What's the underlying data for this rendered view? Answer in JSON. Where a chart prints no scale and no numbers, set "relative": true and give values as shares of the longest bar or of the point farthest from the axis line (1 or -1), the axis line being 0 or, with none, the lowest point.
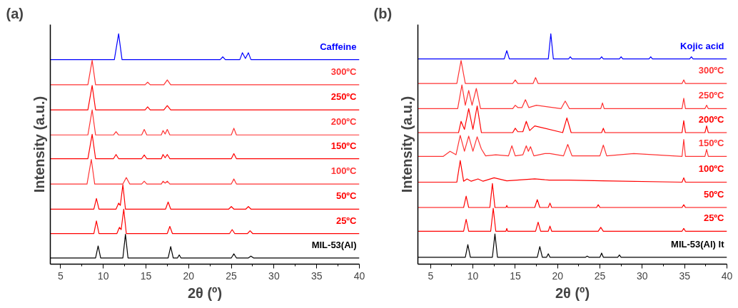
{
  "chart_data": [
    {
      "type": "line",
      "title": "(a)",
      "xlabel": "2θ (º)",
      "ylabel": "Intensity (a.u.)",
      "relative": true,
      "xlim": [
        3.8,
        40
      ],
      "xticks": [
        5,
        10,
        15,
        20,
        25,
        30,
        35,
        40
      ],
      "line_style": "solid",
      "series": [
        {
          "name": "Caffeine",
          "color": "#0000ff",
          "x": [
            3.8,
            11.3,
            11.8,
            12.2,
            23.7,
            24.0,
            24.3,
            26.0,
            26.3,
            26.65,
            27.0,
            27.3,
            40
          ],
          "values": [
            0.888,
            0.888,
            1.0,
            0.888,
            0.888,
            0.9,
            0.888,
            0.888,
            0.918,
            0.893,
            0.918,
            0.888,
            0.888
          ]
        },
        {
          "name": "300ºC",
          "color": "#ff3333",
          "x": [
            3.8,
            8.2,
            8.7,
            9.1,
            14.9,
            15.2,
            15.5,
            17.1,
            17.5,
            17.9,
            40
          ],
          "values": [
            0.779,
            0.779,
            0.885,
            0.779,
            0.779,
            0.79,
            0.779,
            0.779,
            0.8,
            0.779,
            0.779
          ]
        },
        {
          "name": "250ºC",
          "color": "#ff0000",
          "x": [
            3.8,
            8.2,
            8.7,
            9.1,
            14.9,
            15.2,
            15.5,
            17.1,
            17.5,
            17.9,
            40
          ],
          "values": [
            0.67,
            0.67,
            0.776,
            0.67,
            0.67,
            0.683,
            0.67,
            0.67,
            0.688,
            0.67,
            0.67
          ]
        },
        {
          "name": "200ºC",
          "color": "#ff3333",
          "x": [
            3.8,
            8.2,
            8.7,
            9.1,
            11.2,
            11.5,
            11.8,
            14.5,
            14.8,
            15.1,
            16.8,
            17.0,
            17.25,
            17.5,
            17.8,
            25.0,
            25.3,
            25.6,
            40
          ],
          "values": [
            0.561,
            0.561,
            0.67,
            0.561,
            0.561,
            0.575,
            0.561,
            0.561,
            0.585,
            0.561,
            0.561,
            0.58,
            0.565,
            0.585,
            0.561,
            0.561,
            0.59,
            0.561,
            0.561
          ]
        },
        {
          "name": "150ºC",
          "color": "#ff0000",
          "x": [
            3.8,
            8.2,
            8.7,
            9.1,
            11.2,
            11.5,
            11.8,
            14.5,
            14.8,
            15.1,
            16.8,
            17.0,
            17.25,
            17.5,
            17.8,
            25.0,
            25.3,
            25.6,
            40
          ],
          "values": [
            0.458,
            0.458,
            0.564,
            0.458,
            0.458,
            0.476,
            0.458,
            0.458,
            0.474,
            0.458,
            0.458,
            0.476,
            0.462,
            0.476,
            0.458,
            0.458,
            0.48,
            0.458,
            0.458
          ]
        },
        {
          "name": "100ºC",
          "color": "#ff3333",
          "x": [
            3.8,
            8.1,
            8.6,
            9.0,
            12.3,
            12.7,
            13.1,
            14.5,
            14.8,
            15.1,
            16.8,
            17.0,
            17.25,
            17.5,
            17.8,
            25.0,
            25.3,
            25.6,
            40
          ],
          "values": [
            0.348,
            0.348,
            0.455,
            0.348,
            0.348,
            0.376,
            0.348,
            0.348,
            0.36,
            0.348,
            0.348,
            0.36,
            0.352,
            0.36,
            0.348,
            0.348,
            0.37,
            0.348,
            0.348
          ]
        },
        {
          "name": "50ºC",
          "color": "#ff0000",
          "x": [
            3.8,
            8.9,
            9.2,
            9.5,
            11.5,
            11.8,
            12.0,
            12.3,
            12.6,
            17.3,
            17.6,
            17.9,
            24.7,
            25.0,
            25.3,
            26.7,
            27.0,
            27.3,
            40
          ],
          "values": [
            0.239,
            0.239,
            0.285,
            0.239,
            0.239,
            0.265,
            0.255,
            0.345,
            0.239,
            0.239,
            0.27,
            0.239,
            0.239,
            0.25,
            0.239,
            0.239,
            0.25,
            0.239,
            0.239
          ]
        },
        {
          "name": "25ºC",
          "color": "#ff0000",
          "x": [
            3.8,
            8.9,
            9.2,
            9.5,
            11.6,
            11.9,
            12.1,
            12.4,
            12.7,
            17.5,
            17.8,
            18.1,
            24.8,
            25.1,
            25.4,
            26.9,
            27.2,
            27.5,
            40
          ],
          "values": [
            0.133,
            0.133,
            0.188,
            0.133,
            0.133,
            0.16,
            0.15,
            0.239,
            0.133,
            0.133,
            0.164,
            0.133,
            0.133,
            0.15,
            0.133,
            0.133,
            0.145,
            0.133,
            0.133
          ]
        },
        {
          "name": "MIL-53(Al)",
          "color": "#000000",
          "x": [
            3.8,
            9.1,
            9.4,
            9.7,
            12.3,
            12.6,
            12.9,
            17.6,
            17.9,
            18.2,
            18.7,
            18.9,
            19.1,
            25.0,
            25.3,
            25.6,
            27.0,
            27.3,
            27.6,
            40
          ],
          "values": [
            0.027,
            0.027,
            0.079,
            0.027,
            0.027,
            0.13,
            0.027,
            0.027,
            0.076,
            0.027,
            0.027,
            0.04,
            0.027,
            0.027,
            0.045,
            0.027,
            0.027,
            0.035,
            0.027,
            0.027
          ]
        }
      ]
    },
    {
      "type": "line",
      "title": "(b)",
      "xlabel": "2θ (º)",
      "ylabel": "Intensity (a.u.)",
      "relative": true,
      "xlim": [
        3.5,
        40
      ],
      "xticks": [
        5,
        10,
        15,
        20,
        25,
        30,
        35,
        40
      ],
      "line_style": "solid",
      "series": [
        {
          "name": "Kojic acid",
          "color": "#0000ff",
          "x": [
            3.5,
            13.7,
            14.0,
            14.3,
            18.9,
            19.2,
            19.5,
            21.3,
            21.5,
            21.7,
            25.0,
            25.2,
            25.4,
            27.3,
            27.5,
            27.7,
            30.8,
            31.0,
            31.2,
            35.6,
            35.8,
            36.0,
            40
          ],
          "values": [
            0.891,
            0.891,
            0.927,
            0.891,
            0.891,
            1.0,
            0.891,
            0.891,
            0.9,
            0.891,
            0.891,
            0.9,
            0.891,
            0.891,
            0.9,
            0.891,
            0.891,
            0.9,
            0.891,
            0.891,
            0.9,
            0.891,
            0.891
          ]
        },
        {
          "name": "300ºC",
          "color": "#ff3333",
          "x": [
            3.5,
            8.1,
            8.6,
            9.1,
            14.7,
            15.0,
            15.3,
            17.1,
            17.4,
            17.7,
            34.7,
            34.9,
            35.1,
            40
          ],
          "values": [
            0.784,
            0.784,
            0.884,
            0.784,
            0.784,
            0.8,
            0.784,
            0.784,
            0.81,
            0.784,
            0.784,
            0.8,
            0.784,
            0.784
          ]
        },
        {
          "name": "250ºC",
          "color": "#ff3333",
          "x": [
            3.5,
            8.2,
            8.7,
            9.1,
            9.5,
            9.9,
            10.4,
            10.9,
            14.7,
            15.0,
            15.3,
            15.8,
            16.2,
            16.6,
            17.5,
            20.4,
            20.9,
            21.4,
            25.1,
            25.3,
            25.5,
            34.7,
            34.9,
            35.1,
            37.4,
            37.6,
            37.8,
            40
          ],
          "values": [
            0.675,
            0.675,
            0.778,
            0.69,
            0.754,
            0.69,
            0.763,
            0.675,
            0.675,
            0.69,
            0.68,
            0.68,
            0.714,
            0.68,
            0.69,
            0.675,
            0.708,
            0.675,
            0.675,
            0.7,
            0.675,
            0.675,
            0.72,
            0.675,
            0.675,
            0.69,
            0.675,
            0.675
          ]
        },
        {
          "name": "200ºC",
          "color": "#ff0000",
          "x": [
            3.5,
            8.3,
            8.6,
            9.0,
            9.5,
            10.0,
            10.5,
            11.0,
            14.7,
            15.0,
            15.3,
            15.9,
            16.3,
            16.7,
            17.3,
            20.6,
            21.1,
            21.6,
            25.2,
            25.4,
            25.6,
            34.7,
            34.9,
            35.1,
            37.4,
            37.6,
            37.8,
            40
          ],
          "values": [
            0.571,
            0.571,
            0.62,
            0.585,
            0.675,
            0.585,
            0.687,
            0.571,
            0.571,
            0.59,
            0.575,
            0.575,
            0.62,
            0.58,
            0.6,
            0.571,
            0.635,
            0.571,
            0.571,
            0.59,
            0.571,
            0.571,
            0.623,
            0.571,
            0.571,
            0.6,
            0.571,
            0.571
          ]
        },
        {
          "name": "150ºC",
          "color": "#ff3333",
          "x": [
            3.5,
            6.5,
            7.3,
            8.0,
            8.5,
            9.0,
            9.5,
            10.0,
            10.5,
            11.0,
            11.5,
            12.7,
            14.2,
            14.6,
            15.0,
            15.9,
            16.3,
            16.55,
            16.8,
            17.2,
            18.5,
            19.1,
            20.7,
            21.2,
            21.7,
            25.0,
            25.4,
            25.8,
            29.0,
            34.7,
            34.9,
            35.1,
            37.4,
            37.6,
            37.8,
            40
          ],
          "values": [
            0.468,
            0.468,
            0.49,
            0.475,
            0.559,
            0.49,
            0.556,
            0.49,
            0.553,
            0.5,
            0.47,
            0.475,
            0.47,
            0.514,
            0.47,
            0.475,
            0.514,
            0.49,
            0.51,
            0.47,
            0.48,
            0.48,
            0.47,
            0.52,
            0.47,
            0.47,
            0.517,
            0.47,
            0.48,
            0.468,
            0.541,
            0.468,
            0.468,
            0.498,
            0.468,
            0.468
          ]
        },
        {
          "name": "100ºC",
          "color": "#ff0000",
          "x": [
            3.5,
            8.1,
            8.5,
            8.9,
            9.3,
            9.8,
            10.6,
            11.2,
            12.5,
            14.0,
            17.3,
            19.0,
            21.3,
            25.3,
            34.7,
            34.9,
            35.1,
            40
          ],
          "values": [
            0.356,
            0.356,
            0.45,
            0.36,
            0.37,
            0.36,
            0.37,
            0.36,
            0.375,
            0.362,
            0.37,
            0.365,
            0.365,
            0.362,
            0.356,
            0.375,
            0.356,
            0.356
          ]
        },
        {
          "name": "50ºC",
          "color": "#ff0000",
          "x": [
            3.5,
            8.9,
            9.2,
            9.5,
            12.0,
            12.3,
            12.6,
            13.9,
            14.0,
            14.1,
            17.3,
            17.6,
            17.9,
            18.9,
            19.1,
            19.3,
            24.6,
            24.8,
            25.0,
            34.7,
            34.9,
            35.1,
            40
          ],
          "values": [
            0.246,
            0.246,
            0.295,
            0.246,
            0.246,
            0.35,
            0.246,
            0.246,
            0.255,
            0.246,
            0.246,
            0.28,
            0.246,
            0.246,
            0.265,
            0.246,
            0.246,
            0.258,
            0.246,
            0.246,
            0.258,
            0.246,
            0.246
          ]
        },
        {
          "name": "25ºC",
          "color": "#ff0000",
          "x": [
            3.5,
            8.9,
            9.2,
            9.5,
            12.1,
            12.4,
            12.7,
            13.9,
            14.0,
            14.1,
            17.4,
            17.7,
            18.0,
            18.9,
            19.1,
            19.3,
            24.8,
            25.1,
            25.4,
            34.7,
            34.9,
            35.1,
            40
          ],
          "values": [
            0.143,
            0.143,
            0.195,
            0.143,
            0.143,
            0.243,
            0.143,
            0.143,
            0.155,
            0.143,
            0.143,
            0.182,
            0.143,
            0.143,
            0.165,
            0.143,
            0.143,
            0.16,
            0.143,
            0.143,
            0.155,
            0.143,
            0.143
          ]
        },
        {
          "name": "MIL-53(Al) lt",
          "color": "#000000",
          "x": [
            3.5,
            9.1,
            9.4,
            9.7,
            12.3,
            12.6,
            12.9,
            17.6,
            17.9,
            18.2,
            18.7,
            18.9,
            19.1,
            23.3,
            23.5,
            23.7,
            25.0,
            25.2,
            25.4,
            27.1,
            27.3,
            27.5,
            40
          ],
          "values": [
            0.03,
            0.03,
            0.085,
            0.03,
            0.03,
            0.131,
            0.03,
            0.03,
            0.076,
            0.03,
            0.03,
            0.045,
            0.03,
            0.03,
            0.035,
            0.03,
            0.03,
            0.048,
            0.03,
            0.03,
            0.04,
            0.03,
            0.03
          ]
        }
      ]
    }
  ]
}
